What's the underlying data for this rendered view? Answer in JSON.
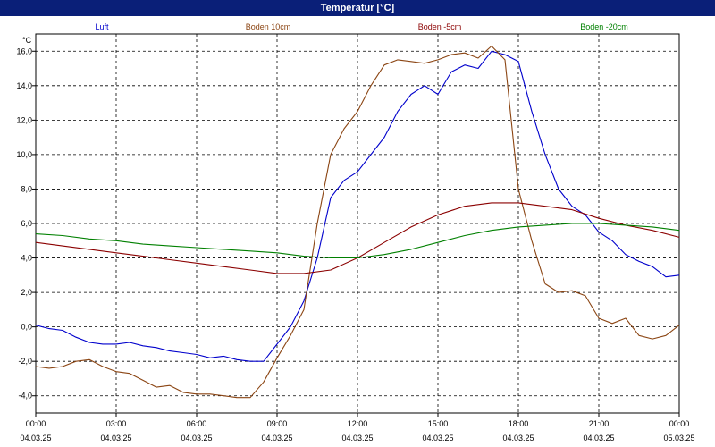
{
  "window": {
    "title": "Temperatur [°C]"
  },
  "chart_data": {
    "type": "line",
    "title": "Temperatur [°C]",
    "ylabel": "°C",
    "xlabel": "",
    "ylim": [
      -5,
      17
    ],
    "xlim": [
      0,
      24
    ],
    "yticks": [
      -4,
      -2,
      0,
      2,
      4,
      6,
      8,
      10,
      12,
      14,
      16
    ],
    "ytick_labels": [
      "-4,0",
      "-2,0",
      "0,0",
      "2,0",
      "4,0",
      "6,0",
      "8,0",
      "10,0",
      "12,0",
      "14,0",
      "16,0"
    ],
    "xticks": [
      0,
      3,
      6,
      9,
      12,
      15,
      18,
      21,
      24
    ],
    "xtick_times": [
      "00:00",
      "03:00",
      "06:00",
      "09:00",
      "12:00",
      "15:00",
      "18:00",
      "21:00",
      "00:00"
    ],
    "xtick_dates": [
      "04.03.25",
      "04.03.25",
      "04.03.25",
      "04.03.25",
      "04.03.25",
      "04.03.25",
      "04.03.25",
      "04.03.25",
      "05.03.25"
    ],
    "grid": true,
    "legend_position": "top",
    "series": [
      {
        "name": "Luft",
        "color": "#0000cc",
        "x": [
          0,
          0.5,
          1,
          1.5,
          2,
          2.5,
          3,
          3.5,
          4,
          4.5,
          5,
          5.5,
          6,
          6.5,
          7,
          7.5,
          8,
          8.5,
          9,
          9.5,
          10,
          10.5,
          11,
          11.5,
          12,
          12.5,
          13,
          13.5,
          14,
          14.5,
          15,
          15.5,
          16,
          16.5,
          17,
          17.5,
          18,
          18.5,
          19,
          19.5,
          20,
          20.5,
          21,
          21.5,
          22,
          22.5,
          23,
          23.5,
          24
        ],
        "values": [
          0.1,
          -0.1,
          -0.2,
          -0.6,
          -0.9,
          -1.0,
          -1.0,
          -0.9,
          -1.1,
          -1.2,
          -1.4,
          -1.5,
          -1.6,
          -1.8,
          -1.7,
          -1.9,
          -2.0,
          -2.0,
          -1.0,
          0.0,
          1.5,
          4.0,
          7.5,
          8.5,
          9.0,
          10.0,
          11.0,
          12.5,
          13.5,
          14.0,
          13.5,
          14.8,
          15.2,
          15.0,
          16.0,
          15.8,
          15.4,
          12.5,
          10.0,
          8.0,
          7.0,
          6.5,
          5.5,
          5.0,
          4.2,
          3.8,
          3.5,
          2.9,
          3.0
        ]
      },
      {
        "name": "Boden 10cm",
        "color": "#8b4513",
        "x": [
          0,
          0.5,
          1,
          1.5,
          2,
          2.5,
          3,
          3.5,
          4,
          4.5,
          5,
          5.5,
          6,
          6.5,
          7,
          7.5,
          8,
          8.5,
          9,
          9.5,
          10,
          10.5,
          11,
          11.5,
          12,
          12.5,
          13,
          13.5,
          14,
          14.5,
          15,
          15.5,
          16,
          16.5,
          17,
          17.5,
          18,
          18.5,
          19,
          19.5,
          20,
          20.5,
          21,
          21.5,
          22,
          22.5,
          23,
          23.5,
          24
        ],
        "values": [
          -2.3,
          -2.4,
          -2.3,
          -2.0,
          -1.9,
          -2.3,
          -2.6,
          -2.7,
          -3.1,
          -3.5,
          -3.4,
          -3.8,
          -3.9,
          -3.9,
          -4.0,
          -4.1,
          -4.1,
          -3.2,
          -1.8,
          -0.5,
          1.0,
          6.0,
          10.0,
          11.5,
          12.5,
          14.0,
          15.2,
          15.5,
          15.4,
          15.3,
          15.5,
          15.8,
          15.9,
          15.6,
          16.3,
          15.5,
          8.0,
          5.0,
          2.5,
          2.0,
          2.1,
          1.8,
          0.5,
          0.2,
          0.5,
          -0.5,
          -0.7,
          -0.5,
          0.1
        ]
      },
      {
        "name": "Boden -5cm",
        "color": "#8b0000",
        "x": [
          0,
          1,
          2,
          3,
          4,
          5,
          6,
          7,
          8,
          9,
          10,
          11,
          12,
          13,
          14,
          15,
          16,
          17,
          18,
          19,
          20,
          21,
          22,
          23,
          24
        ],
        "values": [
          4.9,
          4.7,
          4.5,
          4.3,
          4.1,
          3.9,
          3.7,
          3.5,
          3.3,
          3.1,
          3.1,
          3.3,
          4.0,
          4.9,
          5.8,
          6.5,
          7.0,
          7.2,
          7.2,
          7.0,
          6.8,
          6.3,
          5.9,
          5.6,
          5.2
        ]
      },
      {
        "name": "Boden -20cm",
        "color": "#008000",
        "x": [
          0,
          1,
          2,
          3,
          4,
          5,
          6,
          7,
          8,
          9,
          10,
          11,
          12,
          13,
          14,
          15,
          16,
          17,
          18,
          19,
          20,
          21,
          22,
          23,
          24
        ],
        "values": [
          5.4,
          5.3,
          5.1,
          5.0,
          4.8,
          4.7,
          4.6,
          4.5,
          4.4,
          4.3,
          4.1,
          4.0,
          4.0,
          4.2,
          4.5,
          4.9,
          5.3,
          5.6,
          5.8,
          5.9,
          6.0,
          6.0,
          5.9,
          5.8,
          5.6
        ]
      }
    ]
  }
}
